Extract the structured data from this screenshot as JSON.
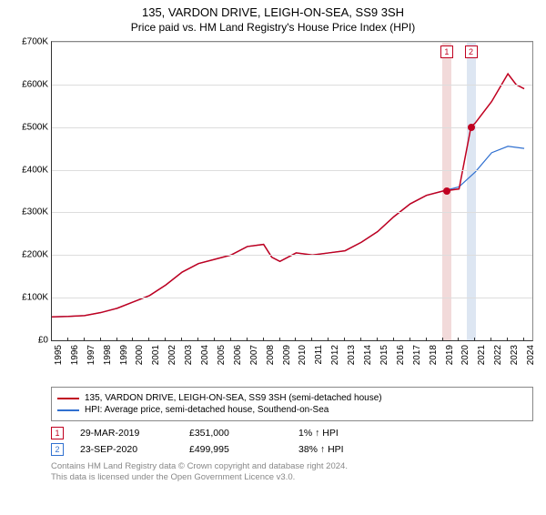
{
  "title": "135, VARDON DRIVE, LEIGH-ON-SEA, SS9 3SH",
  "subtitle": "Price paid vs. HM Land Registry's House Price Index (HPI)",
  "chart": {
    "type": "line",
    "background_color": "#ffffff",
    "grid_color": "#dddddd",
    "axis_color": "#333333",
    "ylim": [
      0,
      700000
    ],
    "ytick_step": 100000,
    "yticks": [
      "£0",
      "£100K",
      "£200K",
      "£300K",
      "£400K",
      "£500K",
      "£600K",
      "£700K"
    ],
    "xlim": [
      1995,
      2024.5
    ],
    "xticks": [
      1995,
      1996,
      1997,
      1998,
      1999,
      2000,
      2001,
      2002,
      2003,
      2004,
      2005,
      2006,
      2007,
      2008,
      2009,
      2010,
      2011,
      2012,
      2013,
      2014,
      2015,
      2016,
      2017,
      2018,
      2019,
      2020,
      2021,
      2022,
      2023,
      2024
    ],
    "series": [
      {
        "name": "135, VARDON DRIVE, LEIGH-ON-SEA, SS9 3SH (semi-detached house)",
        "color": "#c00020",
        "line_width": 1.5,
        "data": [
          [
            1995,
            55000
          ],
          [
            1996,
            56000
          ],
          [
            1997,
            58000
          ],
          [
            1998,
            65000
          ],
          [
            1999,
            75000
          ],
          [
            2000,
            90000
          ],
          [
            2001,
            105000
          ],
          [
            2002,
            130000
          ],
          [
            2003,
            160000
          ],
          [
            2004,
            180000
          ],
          [
            2005,
            190000
          ],
          [
            2006,
            200000
          ],
          [
            2007,
            220000
          ],
          [
            2008,
            225000
          ],
          [
            2008.5,
            195000
          ],
          [
            2009,
            185000
          ],
          [
            2010,
            205000
          ],
          [
            2011,
            200000
          ],
          [
            2012,
            205000
          ],
          [
            2013,
            210000
          ],
          [
            2014,
            230000
          ],
          [
            2015,
            255000
          ],
          [
            2016,
            290000
          ],
          [
            2017,
            320000
          ],
          [
            2018,
            340000
          ],
          [
            2019,
            350000
          ],
          [
            2019.24,
            351000
          ],
          [
            2020,
            355000
          ],
          [
            2020.73,
            499995
          ],
          [
            2021,
            510000
          ],
          [
            2022,
            560000
          ],
          [
            2023,
            625000
          ],
          [
            2023.5,
            600000
          ],
          [
            2024,
            590000
          ]
        ]
      },
      {
        "name": "HPI: Average price, semi-detached house, Southend-on-Sea",
        "color": "#3070d0",
        "line_width": 1.2,
        "data": [
          [
            1995,
            55000
          ],
          [
            1996,
            56000
          ],
          [
            1997,
            58000
          ],
          [
            1998,
            65000
          ],
          [
            1999,
            75000
          ],
          [
            2000,
            90000
          ],
          [
            2001,
            105000
          ],
          [
            2002,
            130000
          ],
          [
            2003,
            160000
          ],
          [
            2004,
            180000
          ],
          [
            2005,
            190000
          ],
          [
            2006,
            200000
          ],
          [
            2007,
            220000
          ],
          [
            2008,
            225000
          ],
          [
            2008.5,
            195000
          ],
          [
            2009,
            185000
          ],
          [
            2010,
            205000
          ],
          [
            2011,
            200000
          ],
          [
            2012,
            205000
          ],
          [
            2013,
            210000
          ],
          [
            2014,
            230000
          ],
          [
            2015,
            255000
          ],
          [
            2016,
            290000
          ],
          [
            2017,
            320000
          ],
          [
            2018,
            340000
          ],
          [
            2019,
            350000
          ],
          [
            2020,
            360000
          ],
          [
            2021,
            395000
          ],
          [
            2022,
            440000
          ],
          [
            2023,
            455000
          ],
          [
            2024,
            450000
          ]
        ]
      }
    ],
    "markers": [
      {
        "id": "1",
        "date_x": 2019.24,
        "price_y": 351000,
        "color": "#c00020",
        "vstrip_color": "#f2dada"
      },
      {
        "id": "2",
        "date_x": 2020.73,
        "price_y": 499995,
        "color": "#c00020",
        "vstrip_color": "#dde6f2"
      }
    ],
    "label_fontsize": 10,
    "title_fontsize": 13
  },
  "legend": {
    "items": [
      {
        "color": "#c00020",
        "label": "135, VARDON DRIVE, LEIGH-ON-SEA, SS9 3SH (semi-detached house)"
      },
      {
        "color": "#3070d0",
        "label": "HPI: Average price, semi-detached house, Southend-on-Sea"
      }
    ]
  },
  "transactions": [
    {
      "id": "1",
      "color": "#c00020",
      "date": "29-MAR-2019",
      "price": "£351,000",
      "change": "1% ↑ HPI"
    },
    {
      "id": "2",
      "color": "#3070d0",
      "date": "23-SEP-2020",
      "price": "£499,995",
      "change": "38% ↑ HPI"
    }
  ],
  "footer_line1": "Contains HM Land Registry data © Crown copyright and database right 2024.",
  "footer_line2": "This data is licensed under the Open Government Licence v3.0."
}
